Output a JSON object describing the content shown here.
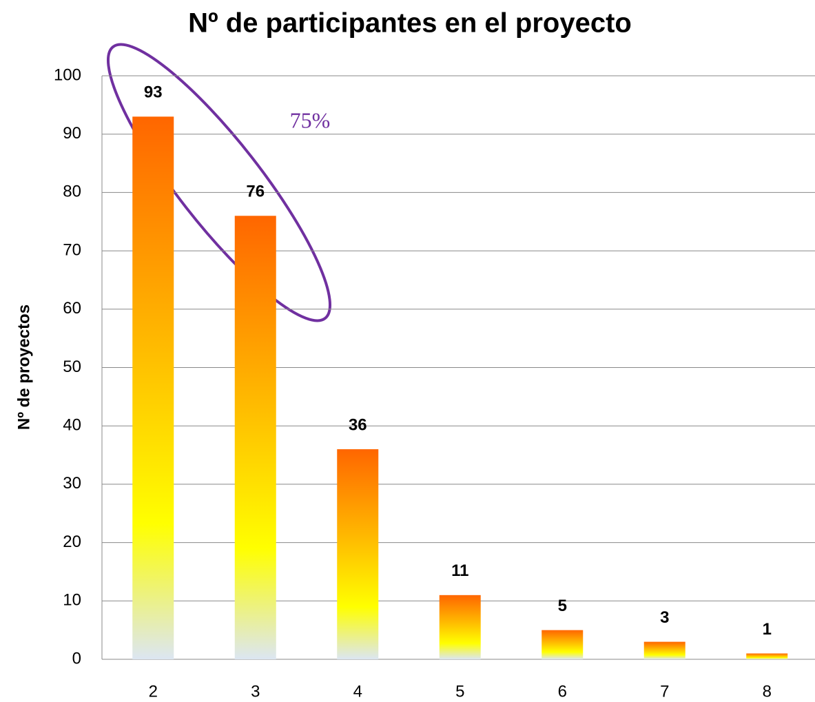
{
  "chart_data": {
    "type": "bar",
    "title": "Nº de participantes en el proyecto",
    "y_label": "Nº de proyectos",
    "annotation": "75%",
    "categories": [
      "2",
      "3",
      "4",
      "5",
      "6",
      "7",
      "8"
    ],
    "values": [
      93,
      76,
      36,
      11,
      5,
      3,
      1
    ],
    "gradient": [
      "#ff6600",
      "#ffc000",
      "#ffff00",
      "#dce6f2"
    ],
    "ylim": [
      0,
      100
    ],
    "yticks": [
      0,
      10,
      20,
      30,
      40,
      50,
      60,
      70,
      80,
      90,
      100
    ],
    "grid": true
  }
}
